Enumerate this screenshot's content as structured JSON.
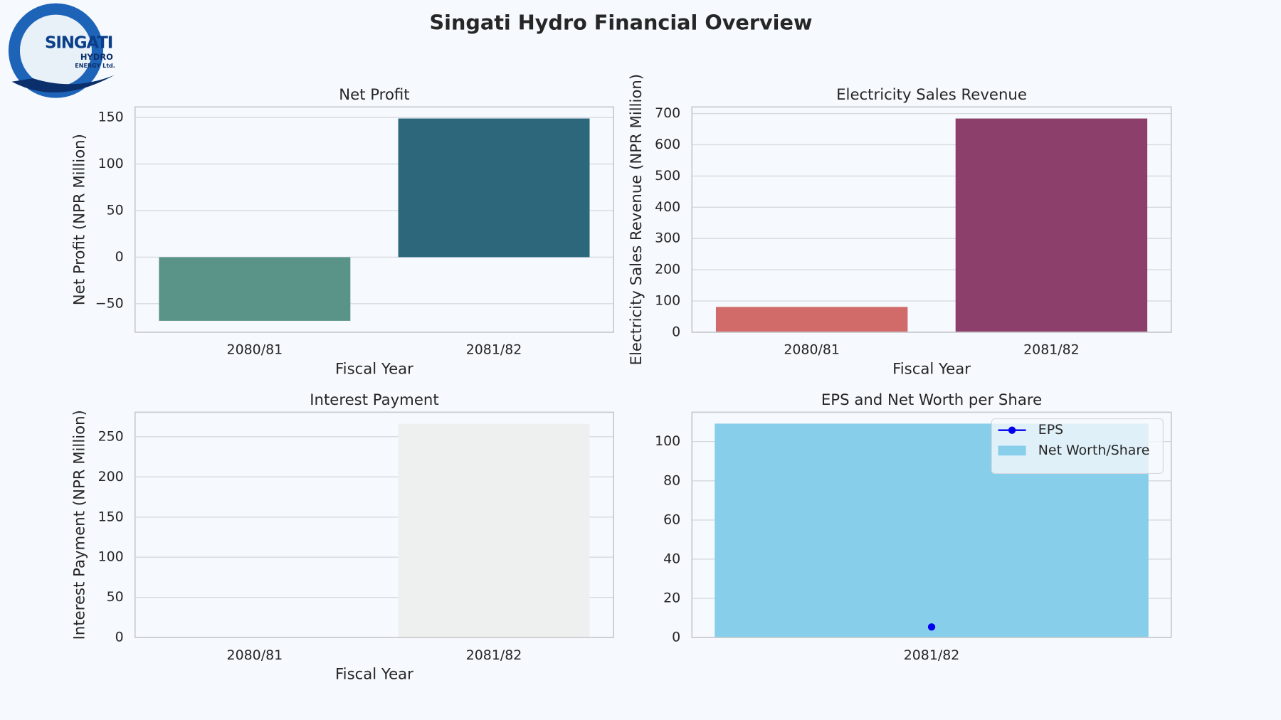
{
  "title": "Singati Hydro Financial Overview",
  "logo": {
    "name": "SINGATI",
    "line2": "HYDRO",
    "line3": "ENERGY Ltd."
  },
  "chart_data": [
    {
      "type": "bar",
      "title": "Net Profit",
      "xlabel": "Fiscal Year",
      "ylabel": "Net Profit (NPR Million)",
      "categories": [
        "2080/81",
        "2081/82"
      ],
      "values": [
        -68.4,
        149
      ],
      "colors": [
        "#5a9488",
        "#2d677c"
      ],
      "ylim": [
        -80.7,
        161.4
      ],
      "yticks": [
        {
          "value": -50,
          "label": "−50"
        },
        0,
        50,
        100,
        150
      ],
      "grid": true
    },
    {
      "type": "bar",
      "title": "Electricity Sales Revenue",
      "xlabel": "Fiscal Year",
      "ylabel": "Electricity Sales Revenue (NPR Million)",
      "categories": [
        "2080/81",
        "2081/82"
      ],
      "values": [
        81,
        684
      ],
      "colors": [
        "#d06b6a",
        "#8b3f6a"
      ],
      "ylim": [
        0,
        721
      ],
      "yticks": [
        0,
        100,
        200,
        300,
        400,
        500,
        600,
        700
      ],
      "grid": true
    },
    {
      "type": "bar",
      "title": "Interest Payment",
      "xlabel": "Fiscal Year",
      "ylabel": "Interest Payment (NPR Million)",
      "categories": [
        "2080/81",
        "2081/82"
      ],
      "values": [
        0,
        266
      ],
      "colors": [
        "#f6f9fb",
        "#edf0ee"
      ],
      "ylim": [
        0,
        280.5
      ],
      "yticks": [
        0,
        50,
        100,
        150,
        200,
        250
      ],
      "grid": true
    },
    {
      "type": "combo",
      "title": "EPS and Net Worth per Share",
      "categories": [
        "2081/82"
      ],
      "series": [
        {
          "name": "EPS",
          "kind": "line",
          "color": "#0000ee",
          "values": [
            5.4
          ]
        },
        {
          "name": "Net Worth/Share",
          "kind": "bar",
          "color": "#87ceeb",
          "values": [
            109.2
          ]
        }
      ],
      "ylim": [
        0,
        115
      ],
      "yticks": [
        0,
        20,
        40,
        60,
        80,
        100
      ],
      "grid": true,
      "legend": "upper right"
    }
  ]
}
